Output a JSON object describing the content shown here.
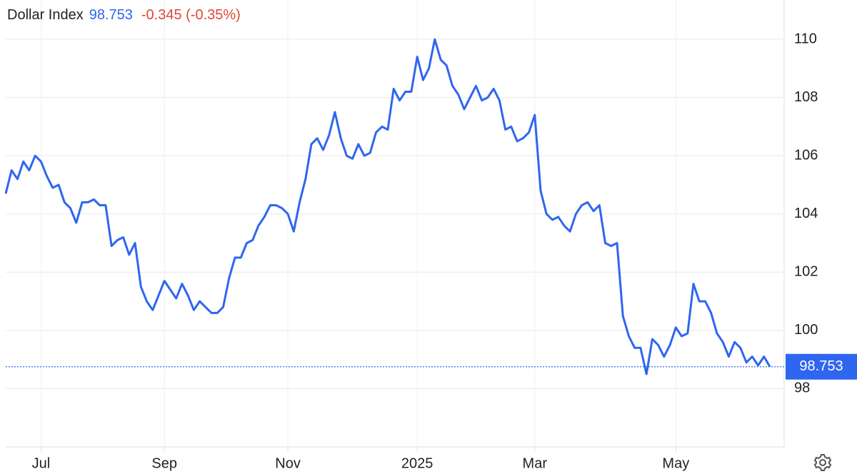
{
  "chart_data": {
    "type": "line",
    "title": "Dollar Index",
    "change_label": "-0.345 (-0.35%)",
    "categories": [
      null,
      null,
      null,
      null,
      null,
      null,
      "Jul",
      null,
      null,
      null,
      null,
      null,
      null,
      null,
      null,
      null,
      null,
      null,
      null,
      null,
      null,
      null,
      null,
      null,
      null,
      null,
      null,
      "Sep",
      null,
      null,
      null,
      null,
      null,
      null,
      null,
      null,
      null,
      null,
      null,
      null,
      null,
      null,
      null,
      null,
      null,
      null,
      null,
      null,
      "Nov",
      null,
      null,
      null,
      null,
      null,
      null,
      null,
      null,
      null,
      null,
      null,
      null,
      null,
      null,
      null,
      null,
      null,
      null,
      null,
      null,
      null,
      "2025",
      null,
      null,
      null,
      null,
      null,
      null,
      null,
      null,
      null,
      null,
      null,
      null,
      null,
      null,
      null,
      null,
      null,
      null,
      null,
      "Mar",
      null,
      null,
      null,
      null,
      null,
      null,
      null,
      null,
      null,
      null,
      null,
      null,
      null,
      null,
      null,
      null,
      null,
      null,
      null,
      null,
      null,
      null,
      null,
      "May",
      null,
      null,
      null,
      null,
      null,
      null,
      null,
      null,
      null,
      null,
      null,
      null,
      null,
      null,
      null,
      null
    ],
    "series": [
      {
        "name": "Dollar Index",
        "color": "#2f66f0",
        "values": [
          104.7,
          105.5,
          105.2,
          105.8,
          105.5,
          106.0,
          105.8,
          105.3,
          104.9,
          105.0,
          104.4,
          104.2,
          103.7,
          104.4,
          104.4,
          104.5,
          104.3,
          104.3,
          102.9,
          103.1,
          103.2,
          102.6,
          103.0,
          101.5,
          101.0,
          100.7,
          101.2,
          101.7,
          101.4,
          101.1,
          101.6,
          101.2,
          100.7,
          101.0,
          100.8,
          100.6,
          100.6,
          100.8,
          101.8,
          102.5,
          102.5,
          103.0,
          103.1,
          103.6,
          103.9,
          104.3,
          104.3,
          104.2,
          104.0,
          103.4,
          104.4,
          105.2,
          106.4,
          106.6,
          106.2,
          106.7,
          107.5,
          106.6,
          106.0,
          105.9,
          106.4,
          106.0,
          106.1,
          106.8,
          107.0,
          106.9,
          108.3,
          107.9,
          108.2,
          108.2,
          109.4,
          108.6,
          109.0,
          110.0,
          109.3,
          109.1,
          108.4,
          108.1,
          107.6,
          108.0,
          108.4,
          107.9,
          108.0,
          108.3,
          107.9,
          106.9,
          107.0,
          106.5,
          106.6,
          106.8,
          107.4,
          104.8,
          104.0,
          103.8,
          103.9,
          103.6,
          103.4,
          104.0,
          104.3,
          104.4,
          104.1,
          104.3,
          103.0,
          102.9,
          103.0,
          100.5,
          99.8,
          99.4,
          99.4,
          98.5,
          99.7,
          99.5,
          99.1,
          99.5,
          100.1,
          99.8,
          99.9,
          101.6,
          101.0,
          101.0,
          100.6,
          99.9,
          99.6,
          99.1,
          99.6,
          99.4,
          98.9,
          99.1,
          98.8,
          99.1,
          98.753
        ]
      }
    ],
    "ylim": [
      96,
      111.35
    ],
    "yticks": [
      98,
      100,
      102,
      104,
      106,
      108,
      110
    ],
    "grid": true,
    "change_color": "#e0453a"
  }
}
